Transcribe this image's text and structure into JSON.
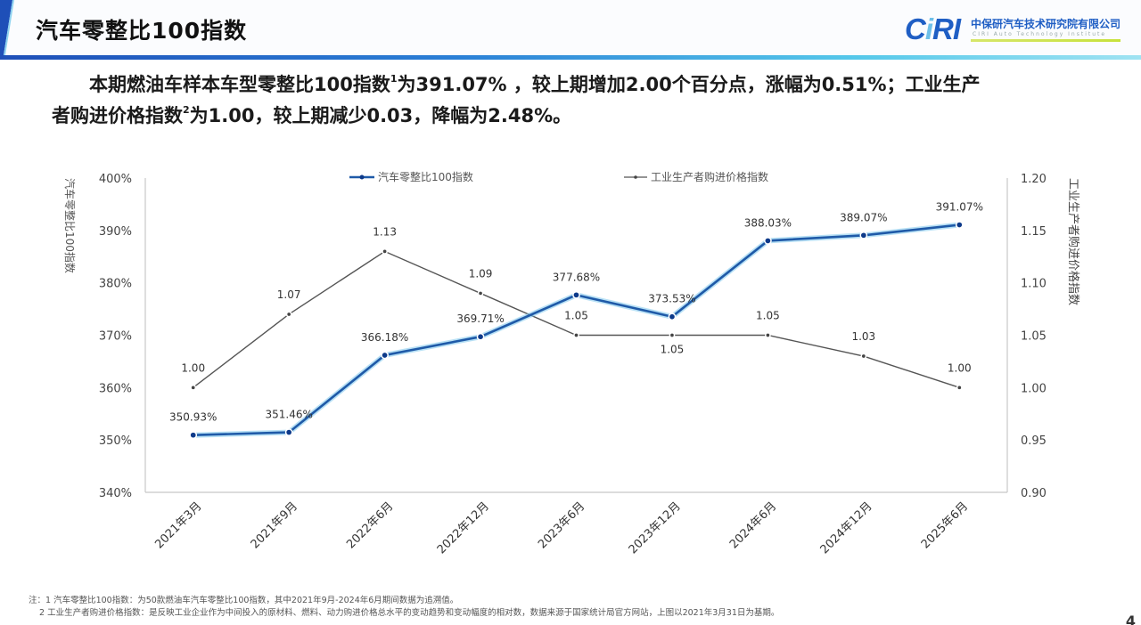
{
  "header": {
    "title": "汽车零整比100指数",
    "logo": {
      "mark_a": "C",
      "mark_b": "i",
      "mark_c": "RI",
      "cn_name": "中保研汽车技术研究院有限公司",
      "en_name": "CIRI Auto Technology Institute"
    },
    "accent_color": "#1f5ec4"
  },
  "summary": {
    "line1_a": "本期燃油车样本车型零整比100指数",
    "sup1": "1",
    "line1_b": "为391.07% ，较上期增加2.00个百分点，涨幅为0.51%；工业生产",
    "line2_a": "者购进价格指数",
    "sup2": "2",
    "line2_b": "为1.00，较上期减少0.03，降幅为2.48%。"
  },
  "chart_data": {
    "type": "line",
    "title": "",
    "categories": [
      "2021年3月",
      "2021年9月",
      "2022年6月",
      "2022年12月",
      "2023年6月",
      "2023年12月",
      "2024年6月",
      "2024年12月",
      "2025年6月"
    ],
    "series": [
      {
        "name": "汽车零整比100指数",
        "axis": "left",
        "color": "#1f5aa8",
        "values": [
          350.93,
          351.46,
          366.18,
          369.71,
          377.68,
          373.53,
          388.03,
          389.07,
          391.07
        ],
        "labels": [
          "350.93%",
          "351.46%",
          "366.18%",
          "369.71%",
          "377.68%",
          "373.53%",
          "388.03%",
          "389.07%",
          "391.07%"
        ]
      },
      {
        "name": "工业生产者购进价格指数",
        "axis": "right",
        "color": "#555555",
        "values": [
          1.0,
          1.07,
          1.13,
          1.09,
          1.05,
          1.05,
          1.05,
          1.03,
          1.0
        ],
        "labels": [
          "1.00",
          "1.07",
          "1.13",
          "1.09",
          "1.05",
          "1.05",
          "1.05",
          "1.03",
          "1.00"
        ]
      }
    ],
    "ylabel_left": "汽车零整比100指数",
    "ylabel_right": "工业生产者购进价格指数",
    "ylim_left": [
      340,
      400
    ],
    "yticks_left": [
      "340%",
      "350%",
      "360%",
      "370%",
      "380%",
      "390%",
      "400%"
    ],
    "ylim_right": [
      0.9,
      1.2
    ],
    "yticks_right": [
      "0.90",
      "0.95",
      "1.00",
      "1.05",
      "1.10",
      "1.15",
      "1.20"
    ],
    "grid": false,
    "legend_position": "top-center"
  },
  "footnotes": {
    "note1": "注：1 汽车零整比100指数：为50款燃油车汽车零整比100指数，其中2021年9月-2024年6月期间数据为追溯值。",
    "note2": "2 工业生产者购进价格指数：是反映工业企业作为中间投入的原材料、燃料、动力购进价格总水平的变动趋势和变动幅度的相对数，数据来源于国家统计局官方网站，上图以2021年3月31日为基期。"
  },
  "page_number": "4"
}
